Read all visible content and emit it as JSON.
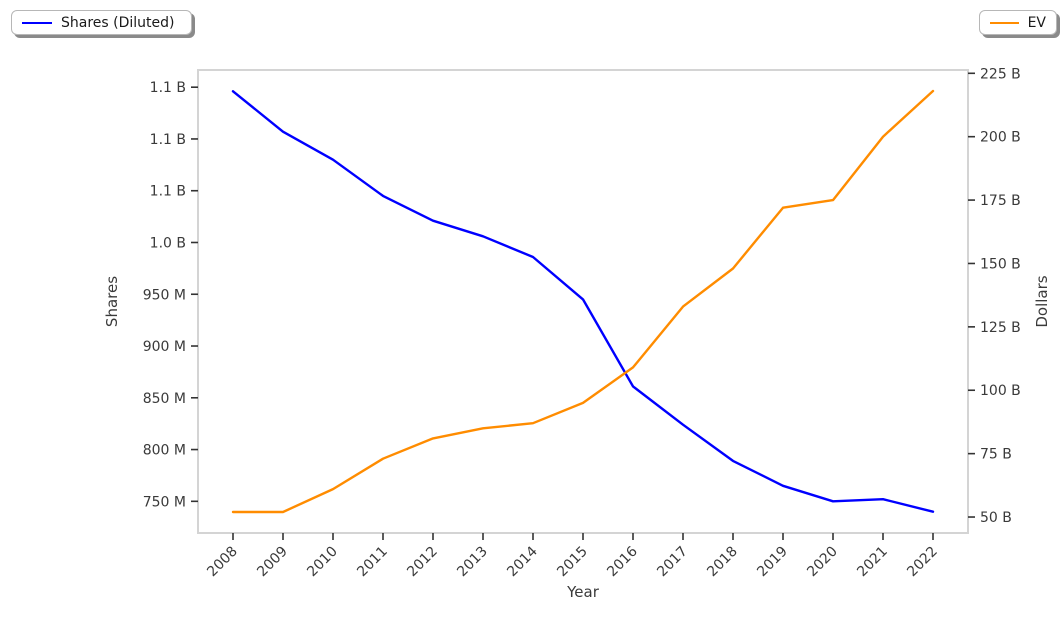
{
  "legends": {
    "shares": {
      "label": "Shares (Diluted)",
      "color": "#0000ff"
    },
    "ev": {
      "label": "EV",
      "color": "#ff8c00"
    }
  },
  "chart_data": {
    "type": "line",
    "title": "",
    "xlabel": "Year",
    "ylabel_left": "Shares",
    "ylabel_right": "Dollars",
    "grid": false,
    "x": [
      2008,
      2009,
      2010,
      2011,
      2012,
      2013,
      2014,
      2015,
      2016,
      2017,
      2018,
      2019,
      2020,
      2021,
      2022
    ],
    "series": [
      {
        "id": "shares-diluted",
        "name": "Shares (Diluted)",
        "axis": "left",
        "color": "#0000ff",
        "unit": "millions of shares",
        "values": [
          1146,
          1107,
          1080,
          1045,
          1021,
          1006,
          986,
          945,
          861,
          824,
          789,
          765,
          750,
          752,
          740
        ]
      },
      {
        "id": "ev",
        "name": "EV",
        "axis": "right",
        "color": "#ff8c00",
        "unit": "billions of dollars",
        "values": [
          52,
          52,
          61,
          73,
          81,
          85,
          87,
          95,
          109,
          133,
          148,
          172,
          175,
          200,
          218
        ]
      }
    ],
    "left_axis": {
      "label": "Shares",
      "ticks": [
        750,
        800,
        850,
        900,
        950,
        1000,
        1050,
        1100,
        1150
      ],
      "tick_labels": [
        "750 M",
        "800 M",
        "850 M",
        "900 M",
        "950 M",
        "1.0 B",
        "1.1 B",
        "1.1 B",
        "1.1 B"
      ],
      "range": [
        719.4,
        1166.6
      ]
    },
    "right_axis": {
      "label": "Dollars",
      "ticks": [
        50,
        75,
        100,
        125,
        150,
        175,
        200,
        225
      ],
      "tick_labels": [
        "50 B",
        "75 B",
        "100 B",
        "125 B",
        "150 B",
        "175 B",
        "200 B",
        "225 B"
      ],
      "range": [
        43.7,
        226.3
      ]
    },
    "x_axis": {
      "label": "Year",
      "tick_labels": [
        "2008",
        "2009",
        "2010",
        "2011",
        "2012",
        "2013",
        "2014",
        "2015",
        "2016",
        "2017",
        "2018",
        "2019",
        "2020",
        "2021",
        "2022"
      ],
      "range": [
        2007.3,
        2022.7
      ],
      "tick_rotation_deg": 45
    },
    "legend_positions": [
      "upper left (figure)",
      "upper right (figure)"
    ]
  }
}
